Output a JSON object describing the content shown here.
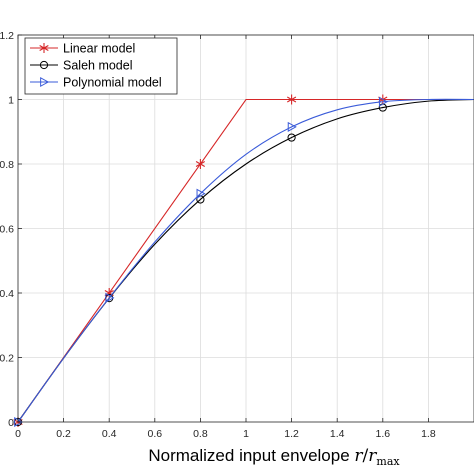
{
  "chart_data": {
    "type": "line",
    "xlabel_text": "Normalized input envelope ",
    "xlabel_math_r": "r",
    "xlabel_math_sep": "/",
    "xlabel_math_r2": "r",
    "xlabel_math_sub": "max",
    "ylabel": "",
    "xlim": [
      0,
      2
    ],
    "ylim": [
      0,
      1.2
    ],
    "grid": true,
    "legend_position": "top-left",
    "x_ticks": [
      0,
      0.2,
      0.4,
      0.6,
      0.8,
      1,
      1.2,
      1.4,
      1.6,
      1.8
    ],
    "x_tick_labels": [
      "0",
      "0.2",
      "0.4",
      "0.6",
      "0.8",
      "1",
      "1.2",
      "1.4",
      "1.6",
      "1.8"
    ],
    "y_ticks": [
      0,
      0.2,
      0.4,
      0.6,
      0.8,
      1,
      1.2
    ],
    "y_tick_labels": [
      "0",
      "0.2",
      "0.4",
      "0.6",
      "0.8",
      "1",
      "1.2"
    ],
    "series": [
      {
        "name": "Linear model",
        "color": "#d62728",
        "marker": "asterisk",
        "curve": {
          "x": [
            0,
            1,
            2
          ],
          "y": [
            0,
            1,
            1
          ]
        },
        "markers": {
          "x": [
            0,
            0.4,
            0.8,
            1.2,
            1.6
          ],
          "y": [
            0,
            0.4,
            0.8,
            1.0,
            1.0
          ]
        }
      },
      {
        "name": "Saleh model",
        "color": "#000000",
        "marker": "circle",
        "curve": {
          "x": [
            0,
            0.2,
            0.4,
            0.6,
            0.8,
            1.0,
            1.2,
            1.4,
            1.6,
            1.8,
            2.0
          ],
          "y": [
            0,
            0.198,
            0.384,
            0.551,
            0.69,
            0.8,
            0.882,
            0.94,
            0.975,
            0.995,
            1.0
          ]
        },
        "markers": {
          "x": [
            0,
            0.4,
            0.8,
            1.2,
            1.6
          ],
          "y": [
            0,
            0.384,
            0.69,
            0.882,
            0.975
          ]
        }
      },
      {
        "name": "Polynomial model",
        "color": "#3a5bd9",
        "marker": "triangle-right",
        "curve": {
          "x": [
            0,
            0.2,
            0.4,
            0.6,
            0.8,
            1.0,
            1.2,
            1.4,
            1.6,
            1.8,
            2.0
          ],
          "y": [
            0,
            0.198,
            0.385,
            0.558,
            0.708,
            0.83,
            0.915,
            0.968,
            0.993,
            1.0,
            1.0
          ]
        },
        "markers": {
          "x": [
            0,
            0.4,
            0.8,
            1.2,
            1.6
          ],
          "y": [
            0,
            0.385,
            0.708,
            0.915,
            0.993
          ]
        }
      }
    ]
  }
}
